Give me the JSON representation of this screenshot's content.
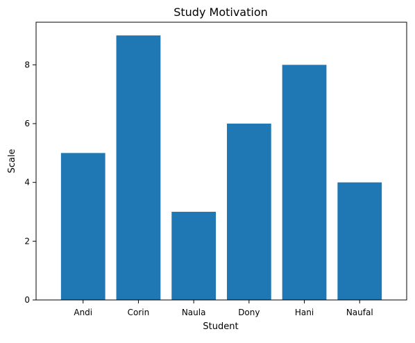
{
  "chart_data": {
    "type": "bar",
    "title": "Study Motivation",
    "xlabel": "Student",
    "ylabel": "Scale",
    "categories": [
      "Andi",
      "Corin",
      "Naula",
      "Dony",
      "Hani",
      "Naufal"
    ],
    "values": [
      5,
      9,
      3,
      6,
      8,
      4
    ],
    "ylim": [
      0,
      9.45
    ],
    "yticks": [
      0,
      2,
      4,
      6,
      8
    ],
    "grid": false,
    "bar_color": "#1f77b4"
  }
}
